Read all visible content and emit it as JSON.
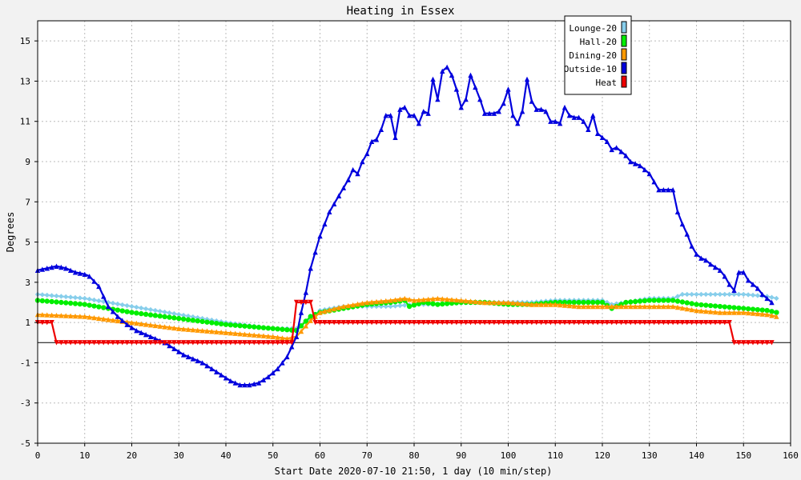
{
  "chart_data": {
    "type": "line",
    "title": "Heating in Essex",
    "xlabel": "Start Date 2020-07-10 21:50, 1 day (10 min/step)",
    "ylabel": "Degrees",
    "xlim": [
      0,
      160
    ],
    "ylim": [
      -5,
      16
    ],
    "x_ticks": [
      0,
      10,
      20,
      30,
      40,
      50,
      60,
      70,
      80,
      90,
      100,
      110,
      120,
      130,
      140,
      150,
      160
    ],
    "y_ticks": [
      -5,
      -3,
      -1,
      1,
      3,
      5,
      7,
      9,
      11,
      13,
      15
    ],
    "grid": true,
    "legend_position": "top-right",
    "series": [
      {
        "name": "Lounge-20",
        "color": "#87ceeb",
        "marker": "diamond",
        "points": [
          [
            0,
            2.4
          ],
          [
            10,
            2.2
          ],
          [
            20,
            1.8
          ],
          [
            30,
            1.4
          ],
          [
            40,
            1.0
          ],
          [
            50,
            0.7
          ],
          [
            55,
            0.7
          ],
          [
            58,
            1.2
          ],
          [
            60,
            1.6
          ],
          [
            65,
            1.8
          ],
          [
            70,
            1.8
          ],
          [
            75,
            1.8
          ],
          [
            80,
            1.9
          ],
          [
            85,
            1.9
          ],
          [
            90,
            2.0
          ],
          [
            95,
            2.0
          ],
          [
            100,
            2.0
          ],
          [
            105,
            2.0
          ],
          [
            110,
            2.1
          ],
          [
            115,
            2.1
          ],
          [
            120,
            2.1
          ],
          [
            122,
            1.9
          ],
          [
            125,
            2.0
          ],
          [
            130,
            2.2
          ],
          [
            135,
            2.2
          ],
          [
            137,
            2.4
          ],
          [
            140,
            2.4
          ],
          [
            145,
            2.4
          ],
          [
            150,
            2.4
          ],
          [
            155,
            2.3
          ],
          [
            157,
            2.2
          ]
        ]
      },
      {
        "name": "Hall-20",
        "color": "#00ee00",
        "marker": "circle",
        "points": [
          [
            0,
            2.1
          ],
          [
            10,
            1.9
          ],
          [
            20,
            1.5
          ],
          [
            30,
            1.2
          ],
          [
            40,
            0.9
          ],
          [
            50,
            0.7
          ],
          [
            55,
            0.6
          ],
          [
            58,
            1.3
          ],
          [
            60,
            1.5
          ],
          [
            65,
            1.7
          ],
          [
            70,
            1.9
          ],
          [
            75,
            2.0
          ],
          [
            78,
            2.1
          ],
          [
            79,
            1.8
          ],
          [
            82,
            2.0
          ],
          [
            85,
            1.9
          ],
          [
            90,
            2.0
          ],
          [
            95,
            2.0
          ],
          [
            100,
            1.9
          ],
          [
            105,
            1.9
          ],
          [
            110,
            2.0
          ],
          [
            115,
            2.0
          ],
          [
            120,
            2.0
          ],
          [
            122,
            1.7
          ],
          [
            125,
            2.0
          ],
          [
            130,
            2.1
          ],
          [
            135,
            2.1
          ],
          [
            140,
            1.9
          ],
          [
            145,
            1.8
          ],
          [
            150,
            1.7
          ],
          [
            155,
            1.6
          ],
          [
            157,
            1.5
          ]
        ]
      },
      {
        "name": "Dining-20",
        "color": "#ff9900",
        "marker": "triangle",
        "points": [
          [
            0,
            1.4
          ],
          [
            10,
            1.3
          ],
          [
            20,
            1.0
          ],
          [
            30,
            0.7
          ],
          [
            40,
            0.5
          ],
          [
            50,
            0.3
          ],
          [
            53,
            0.2
          ],
          [
            55,
            0.3
          ],
          [
            58,
            1.1
          ],
          [
            60,
            1.5
          ],
          [
            65,
            1.8
          ],
          [
            70,
            2.0
          ],
          [
            75,
            2.1
          ],
          [
            78,
            2.2
          ],
          [
            80,
            2.1
          ],
          [
            85,
            2.2
          ],
          [
            90,
            2.1
          ],
          [
            95,
            2.0
          ],
          [
            100,
            2.0
          ],
          [
            105,
            1.9
          ],
          [
            110,
            1.9
          ],
          [
            115,
            1.8
          ],
          [
            120,
            1.8
          ],
          [
            125,
            1.8
          ],
          [
            130,
            1.8
          ],
          [
            135,
            1.8
          ],
          [
            140,
            1.6
          ],
          [
            145,
            1.5
          ],
          [
            150,
            1.5
          ],
          [
            155,
            1.4
          ],
          [
            157,
            1.3
          ]
        ]
      },
      {
        "name": "Outside-10",
        "color": "#0000dd",
        "marker": "triangle",
        "points": [
          [
            0,
            3.6
          ],
          [
            2,
            3.7
          ],
          [
            4,
            3.8
          ],
          [
            6,
            3.7
          ],
          [
            8,
            3.5
          ],
          [
            10,
            3.4
          ],
          [
            11,
            3.3
          ],
          [
            13,
            2.8
          ],
          [
            15,
            1.8
          ],
          [
            17,
            1.3
          ],
          [
            19,
            0.9
          ],
          [
            21,
            0.6
          ],
          [
            23,
            0.4
          ],
          [
            25,
            0.2
          ],
          [
            27,
            0.0
          ],
          [
            29,
            -0.3
          ],
          [
            31,
            -0.6
          ],
          [
            33,
            -0.8
          ],
          [
            35,
            -1.0
          ],
          [
            37,
            -1.3
          ],
          [
            39,
            -1.6
          ],
          [
            41,
            -1.9
          ],
          [
            43,
            -2.1
          ],
          [
            45,
            -2.1
          ],
          [
            47,
            -2.0
          ],
          [
            49,
            -1.7
          ],
          [
            51,
            -1.3
          ],
          [
            53,
            -0.7
          ],
          [
            55,
            0.3
          ],
          [
            56,
            1.5
          ],
          [
            57,
            2.5
          ],
          [
            58,
            3.7
          ],
          [
            60,
            5.3
          ],
          [
            62,
            6.5
          ],
          [
            64,
            7.3
          ],
          [
            66,
            8.1
          ],
          [
            67,
            8.6
          ],
          [
            68,
            8.4
          ],
          [
            69,
            9.0
          ],
          [
            70,
            9.4
          ],
          [
            71,
            10.0
          ],
          [
            72,
            10.1
          ],
          [
            73,
            10.6
          ],
          [
            74,
            11.3
          ],
          [
            75,
            11.3
          ],
          [
            76,
            10.2
          ],
          [
            77,
            11.6
          ],
          [
            78,
            11.7
          ],
          [
            79,
            11.3
          ],
          [
            80,
            11.3
          ],
          [
            81,
            10.9
          ],
          [
            82,
            11.5
          ],
          [
            83,
            11.4
          ],
          [
            84,
            13.1
          ],
          [
            85,
            12.1
          ],
          [
            86,
            13.5
          ],
          [
            87,
            13.7
          ],
          [
            88,
            13.3
          ],
          [
            89,
            12.6
          ],
          [
            90,
            11.7
          ],
          [
            91,
            12.1
          ],
          [
            92,
            13.3
          ],
          [
            93,
            12.7
          ],
          [
            94,
            12.1
          ],
          [
            95,
            11.4
          ],
          [
            96,
            11.4
          ],
          [
            97,
            11.4
          ],
          [
            98,
            11.5
          ],
          [
            99,
            11.9
          ],
          [
            100,
            12.6
          ],
          [
            101,
            11.3
          ],
          [
            102,
            10.9
          ],
          [
            103,
            11.5
          ],
          [
            104,
            13.1
          ],
          [
            105,
            12.0
          ],
          [
            106,
            11.6
          ],
          [
            107,
            11.6
          ],
          [
            108,
            11.5
          ],
          [
            109,
            11.0
          ],
          [
            110,
            11.0
          ],
          [
            111,
            10.9
          ],
          [
            112,
            11.7
          ],
          [
            113,
            11.3
          ],
          [
            114,
            11.2
          ],
          [
            115,
            11.2
          ],
          [
            116,
            11.0
          ],
          [
            117,
            10.6
          ],
          [
            118,
            11.3
          ],
          [
            119,
            10.4
          ],
          [
            120,
            10.2
          ],
          [
            121,
            10.0
          ],
          [
            122,
            9.6
          ],
          [
            123,
            9.7
          ],
          [
            124,
            9.5
          ],
          [
            125,
            9.3
          ],
          [
            126,
            9.0
          ],
          [
            127,
            8.9
          ],
          [
            128,
            8.8
          ],
          [
            130,
            8.4
          ],
          [
            131,
            8.0
          ],
          [
            132,
            7.6
          ],
          [
            133,
            7.6
          ],
          [
            134,
            7.6
          ],
          [
            135,
            7.6
          ],
          [
            136,
            6.5
          ],
          [
            137,
            5.9
          ],
          [
            138,
            5.4
          ],
          [
            139,
            4.8
          ],
          [
            140,
            4.4
          ],
          [
            141,
            4.2
          ],
          [
            142,
            4.1
          ],
          [
            143,
            3.9
          ],
          [
            145,
            3.6
          ],
          [
            146,
            3.3
          ],
          [
            147,
            2.9
          ],
          [
            148,
            2.6
          ],
          [
            149,
            3.5
          ],
          [
            150,
            3.5
          ],
          [
            151,
            3.1
          ],
          [
            152,
            2.9
          ],
          [
            153,
            2.7
          ],
          [
            154,
            2.4
          ],
          [
            155,
            2.2
          ],
          [
            156,
            2.0
          ]
        ]
      },
      {
        "name": "Heat",
        "color": "#ee0000",
        "marker": "triangle-down",
        "points": [
          [
            0,
            1.0
          ],
          [
            3,
            1.0
          ],
          [
            4,
            0.0
          ],
          [
            54,
            0.0
          ],
          [
            55,
            2.0
          ],
          [
            58,
            2.0
          ],
          [
            59,
            1.0
          ],
          [
            147,
            1.0
          ],
          [
            148,
            0.0
          ],
          [
            156,
            0.0
          ]
        ]
      }
    ]
  }
}
